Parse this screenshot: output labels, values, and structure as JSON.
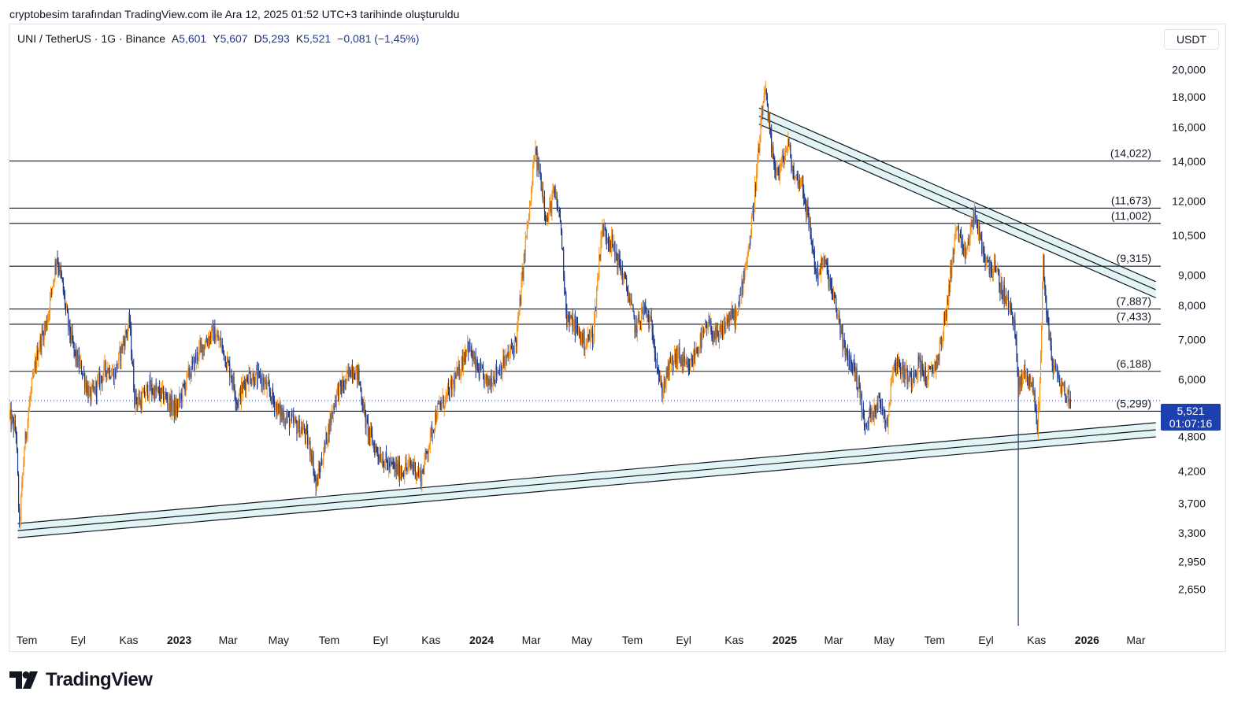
{
  "caption": "cryptobesim tarafından TradingView.com ile Ara 12, 2025 01:52 UTC+3 tarihinde oluşturuldu",
  "legend": {
    "symbol": "UNI / TetherUS · 1G · Binance",
    "open_label": "A",
    "open": "5,601",
    "high_label": "Y",
    "high": "5,607",
    "low_label": "D",
    "low": "5,293",
    "close_label": "K",
    "close": "5,521",
    "change": "−0,081 (−1,45%)"
  },
  "currency": "USDT",
  "price_badge": {
    "price": "5,521",
    "countdown": "01:07:16"
  },
  "brand": {
    "name": "TradingView"
  },
  "colors": {
    "up": "#f7931a",
    "down": "#1e3a8a",
    "line": "#131722",
    "channel_fill": "#e3f4f4",
    "badge": "#1e40af"
  },
  "chart_data": {
    "type": "candlestick",
    "title": "UNI / TetherUS · 1G · Binance",
    "y_scale": "log",
    "ylim": [
      2300,
      21500
    ],
    "x_range": [
      "2022-06-10",
      "2026-03-31"
    ],
    "current_price": 5.521,
    "y_ticks": [
      {
        "label": "20,000",
        "value": 20.0
      },
      {
        "label": "18,000",
        "value": 18.0
      },
      {
        "label": "16,000",
        "value": 16.0
      },
      {
        "label": "14,000",
        "value": 14.0
      },
      {
        "label": "12,000",
        "value": 12.0
      },
      {
        "label": "10,500",
        "value": 10.5
      },
      {
        "label": "9,000",
        "value": 9.0
      },
      {
        "label": "8,000",
        "value": 8.0
      },
      {
        "label": "7,000",
        "value": 7.0
      },
      {
        "label": "6,000",
        "value": 6.0
      },
      {
        "label": "4,800",
        "value": 4.8
      },
      {
        "label": "4,200",
        "value": 4.2
      },
      {
        "label": "3,700",
        "value": 3.7
      },
      {
        "label": "3,300",
        "value": 3.3
      },
      {
        "label": "2,950",
        "value": 2.95
      },
      {
        "label": "2,650",
        "value": 2.65
      }
    ],
    "x_ticks": [
      {
        "label": "Tem",
        "date": "2022-07-01",
        "bold": false
      },
      {
        "label": "Eyl",
        "date": "2022-09-01",
        "bold": false
      },
      {
        "label": "Kas",
        "date": "2022-11-01",
        "bold": false
      },
      {
        "label": "2023",
        "date": "2023-01-01",
        "bold": true
      },
      {
        "label": "Mar",
        "date": "2023-03-01",
        "bold": false
      },
      {
        "label": "May",
        "date": "2023-05-01",
        "bold": false
      },
      {
        "label": "Tem",
        "date": "2023-07-01",
        "bold": false
      },
      {
        "label": "Eyl",
        "date": "2023-09-01",
        "bold": false
      },
      {
        "label": "Kas",
        "date": "2023-11-01",
        "bold": false
      },
      {
        "label": "2024",
        "date": "2024-01-01",
        "bold": true
      },
      {
        "label": "Mar",
        "date": "2024-03-01",
        "bold": false
      },
      {
        "label": "May",
        "date": "2024-05-01",
        "bold": false
      },
      {
        "label": "Tem",
        "date": "2024-07-01",
        "bold": false
      },
      {
        "label": "Eyl",
        "date": "2024-09-01",
        "bold": false
      },
      {
        "label": "Kas",
        "date": "2024-11-01",
        "bold": false
      },
      {
        "label": "2025",
        "date": "2025-01-01",
        "bold": true
      },
      {
        "label": "Mar",
        "date": "2025-03-01",
        "bold": false
      },
      {
        "label": "May",
        "date": "2025-05-01",
        "bold": false
      },
      {
        "label": "Tem",
        "date": "2025-07-01",
        "bold": false
      },
      {
        "label": "Eyl",
        "date": "2025-09-01",
        "bold": false
      },
      {
        "label": "Kas",
        "date": "2025-11-01",
        "bold": false
      },
      {
        "label": "2026",
        "date": "2026-01-01",
        "bold": true
      },
      {
        "label": "Mar",
        "date": "2026-03-01",
        "bold": false
      }
    ],
    "horizontal_levels": [
      {
        "label": "(14,022)",
        "value": 14.022,
        "style": "solid"
      },
      {
        "label": "(11,673)",
        "value": 11.673,
        "style": "solid"
      },
      {
        "label": "(11,002)",
        "value": 11.002,
        "style": "solid"
      },
      {
        "label": "(9,315)",
        "value": 9.315,
        "style": "solid"
      },
      {
        "label": "(7,887)",
        "value": 7.887,
        "style": "solid"
      },
      {
        "label": "(7,433)",
        "value": 7.433,
        "style": "solid"
      },
      {
        "label": "(6,188)",
        "value": 6.188,
        "style": "solid"
      },
      {
        "label": "(5,299)",
        "value": 5.299,
        "style": "solid"
      }
    ],
    "trend_channels": [
      {
        "name": "descending-resistance",
        "start": {
          "date": "2024-12-01",
          "value": 16.7
        },
        "end": {
          "date": "2026-03-25",
          "value": 8.5
        },
        "width_pct": 3.2
      },
      {
        "name": "ascending-support",
        "start": {
          "date": "2022-06-20",
          "value": 3.33
        },
        "end": {
          "date": "2026-03-25",
          "value": 4.93
        },
        "width_pct": 2.8
      }
    ],
    "price_path": [
      [
        "2022-06-10",
        5.2
      ],
      [
        "2022-06-18",
        4.9
      ],
      [
        "2022-06-22",
        3.35
      ],
      [
        "2022-06-28",
        4.6
      ],
      [
        "2022-07-05",
        5.6
      ],
      [
        "2022-07-15",
        6.8
      ],
      [
        "2022-07-25",
        7.5
      ],
      [
        "2022-08-01",
        8.7
      ],
      [
        "2022-08-06",
        9.7
      ],
      [
        "2022-08-12",
        8.8
      ],
      [
        "2022-08-20",
        7.4
      ],
      [
        "2022-08-28",
        6.6
      ],
      [
        "2022-09-06",
        6.2
      ],
      [
        "2022-09-15",
        5.6
      ],
      [
        "2022-09-25",
        5.9
      ],
      [
        "2022-10-05",
        6.3
      ],
      [
        "2022-10-15",
        6.1
      ],
      [
        "2022-10-25",
        6.9
      ],
      [
        "2022-11-02",
        7.5
      ],
      [
        "2022-11-08",
        5.6
      ],
      [
        "2022-11-15",
        5.5
      ],
      [
        "2022-11-25",
        5.8
      ],
      [
        "2022-12-05",
        5.7
      ],
      [
        "2022-12-15",
        5.6
      ],
      [
        "2022-12-28",
        5.3
      ],
      [
        "2023-01-10",
        6.0
      ],
      [
        "2023-01-25",
        6.7
      ],
      [
        "2023-02-10",
        7.2
      ],
      [
        "2023-02-20",
        6.9
      ],
      [
        "2023-03-05",
        6.1
      ],
      [
        "2023-03-12",
        5.5
      ],
      [
        "2023-03-25",
        6.1
      ],
      [
        "2023-04-10",
        6.0
      ],
      [
        "2023-04-20",
        5.7
      ],
      [
        "2023-05-01",
        5.3
      ],
      [
        "2023-05-15",
        5.1
      ],
      [
        "2023-06-01",
        4.9
      ],
      [
        "2023-06-10",
        4.5
      ],
      [
        "2023-06-15",
        3.95
      ],
      [
        "2023-06-28",
        4.8
      ],
      [
        "2023-07-10",
        5.7
      ],
      [
        "2023-07-20",
        5.9
      ],
      [
        "2023-07-28",
        6.3
      ],
      [
        "2023-08-05",
        6.1
      ],
      [
        "2023-08-15",
        5.0
      ],
      [
        "2023-08-25",
        4.6
      ],
      [
        "2023-09-10",
        4.3
      ],
      [
        "2023-09-25",
        4.2
      ],
      [
        "2023-10-10",
        4.3
      ],
      [
        "2023-10-20",
        4.1
      ],
      [
        "2023-10-28",
        4.6
      ],
      [
        "2023-11-08",
        5.3
      ],
      [
        "2023-11-20",
        5.6
      ],
      [
        "2023-12-05",
        6.2
      ],
      [
        "2023-12-15",
        6.9
      ],
      [
        "2023-12-25",
        6.3
      ],
      [
        "2024-01-08",
        5.9
      ],
      [
        "2024-01-20",
        6.2
      ],
      [
        "2024-02-01",
        6.5
      ],
      [
        "2024-02-12",
        7.0
      ],
      [
        "2024-02-23",
        10.2
      ],
      [
        "2024-03-01",
        12.3
      ],
      [
        "2024-03-05",
        14.6
      ],
      [
        "2024-03-12",
        13.2
      ],
      [
        "2024-03-20",
        11.1
      ],
      [
        "2024-03-28",
        12.4
      ],
      [
        "2024-04-05",
        11.2
      ],
      [
        "2024-04-13",
        7.6
      ],
      [
        "2024-04-22",
        7.4
      ],
      [
        "2024-05-05",
        6.9
      ],
      [
        "2024-05-15",
        7.2
      ],
      [
        "2024-05-25",
        10.8
      ],
      [
        "2024-06-05",
        10.3
      ],
      [
        "2024-06-15",
        9.4
      ],
      [
        "2024-06-25",
        8.5
      ],
      [
        "2024-07-05",
        7.3
      ],
      [
        "2024-07-15",
        7.9
      ],
      [
        "2024-07-25",
        7.3
      ],
      [
        "2024-08-05",
        5.7
      ],
      [
        "2024-08-15",
        6.3
      ],
      [
        "2024-08-25",
        6.6
      ],
      [
        "2024-09-06",
        6.2
      ],
      [
        "2024-09-20",
        6.9
      ],
      [
        "2024-10-01",
        7.4
      ],
      [
        "2024-10-12",
        7.0
      ],
      [
        "2024-10-25",
        7.6
      ],
      [
        "2024-11-05",
        7.7
      ],
      [
        "2024-11-12",
        9.0
      ],
      [
        "2024-11-20",
        10.3
      ],
      [
        "2024-11-26",
        12.5
      ],
      [
        "2024-12-03",
        15.8
      ],
      [
        "2024-12-08",
        18.8
      ],
      [
        "2024-12-12",
        16.4
      ],
      [
        "2024-12-18",
        14.0
      ],
      [
        "2024-12-25",
        13.4
      ],
      [
        "2025-01-05",
        15.0
      ],
      [
        "2025-01-12",
        13.2
      ],
      [
        "2025-01-22",
        12.9
      ],
      [
        "2025-02-02",
        10.4
      ],
      [
        "2025-02-08",
        9.0
      ],
      [
        "2025-02-18",
        9.5
      ],
      [
        "2025-02-28",
        8.3
      ],
      [
        "2025-03-08",
        7.5
      ],
      [
        "2025-03-15",
        6.6
      ],
      [
        "2025-03-25",
        6.3
      ],
      [
        "2025-04-02",
        5.7
      ],
      [
        "2025-04-08",
        4.9
      ],
      [
        "2025-04-15",
        5.3
      ],
      [
        "2025-04-25",
        5.5
      ],
      [
        "2025-05-05",
        5.1
      ],
      [
        "2025-05-12",
        6.4
      ],
      [
        "2025-05-20",
        6.3
      ],
      [
        "2025-06-01",
        6.0
      ],
      [
        "2025-06-12",
        6.4
      ],
      [
        "2025-06-22",
        6.0
      ],
      [
        "2025-07-05",
        6.5
      ],
      [
        "2025-07-15",
        7.8
      ],
      [
        "2025-07-22",
        9.6
      ],
      [
        "2025-07-28",
        10.9
      ],
      [
        "2025-08-05",
        9.6
      ],
      [
        "2025-08-12",
        10.4
      ],
      [
        "2025-08-18",
        11.5
      ],
      [
        "2025-08-24",
        10.4
      ],
      [
        "2025-09-02",
        9.4
      ],
      [
        "2025-09-12",
        9.2
      ],
      [
        "2025-09-20",
        8.5
      ],
      [
        "2025-09-28",
        8.0
      ],
      [
        "2025-10-05",
        7.6
      ],
      [
        "2025-10-10",
        5.8
      ],
      [
        "2025-10-18",
        6.2
      ],
      [
        "2025-10-28",
        5.8
      ],
      [
        "2025-11-02",
        4.95
      ],
      [
        "2025-11-06",
        6.5
      ],
      [
        "2025-11-09",
        9.6
      ],
      [
        "2025-11-13",
        7.8
      ],
      [
        "2025-11-20",
        6.4
      ],
      [
        "2025-11-28",
        6.0
      ],
      [
        "2025-12-05",
        5.7
      ],
      [
        "2025-12-12",
        5.521
      ]
    ]
  }
}
